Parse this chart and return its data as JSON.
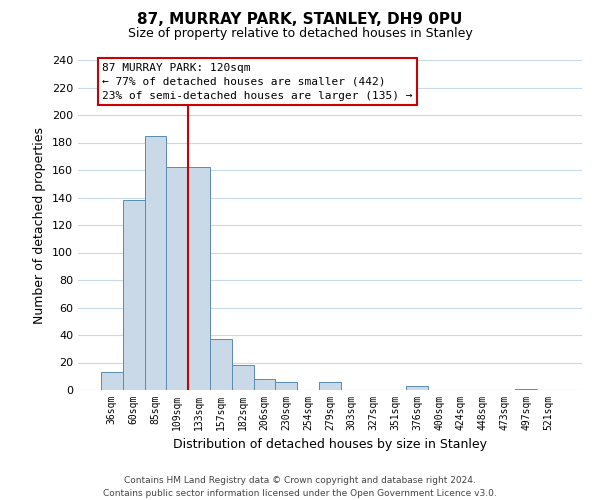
{
  "title": "87, MURRAY PARK, STANLEY, DH9 0PU",
  "subtitle": "Size of property relative to detached houses in Stanley",
  "xlabel": "Distribution of detached houses by size in Stanley",
  "ylabel": "Number of detached properties",
  "bar_labels": [
    "36sqm",
    "60sqm",
    "85sqm",
    "109sqm",
    "133sqm",
    "157sqm",
    "182sqm",
    "206sqm",
    "230sqm",
    "254sqm",
    "279sqm",
    "303sqm",
    "327sqm",
    "351sqm",
    "376sqm",
    "400sqm",
    "424sqm",
    "448sqm",
    "473sqm",
    "497sqm",
    "521sqm"
  ],
  "bar_values": [
    13,
    138,
    185,
    162,
    162,
    37,
    18,
    8,
    6,
    0,
    6,
    0,
    0,
    0,
    3,
    0,
    0,
    0,
    0,
    1,
    0
  ],
  "bar_color": "#c9d9e8",
  "bar_edge_color": "#5a8ab0",
  "vline_x": 3.5,
  "vline_color": "#cc0000",
  "ylim": [
    0,
    240
  ],
  "yticks": [
    0,
    20,
    40,
    60,
    80,
    100,
    120,
    140,
    160,
    180,
    200,
    220,
    240
  ],
  "annotation_title": "87 MURRAY PARK: 120sqm",
  "annotation_line1": "← 77% of detached houses are smaller (442)",
  "annotation_line2": "23% of semi-detached houses are larger (135) →",
  "annotation_box_color": "#ffffff",
  "annotation_box_edge": "#cc0000",
  "footer_line1": "Contains HM Land Registry data © Crown copyright and database right 2024.",
  "footer_line2": "Contains public sector information licensed under the Open Government Licence v3.0.",
  "bg_color": "#ffffff",
  "grid_color": "#c8daea"
}
